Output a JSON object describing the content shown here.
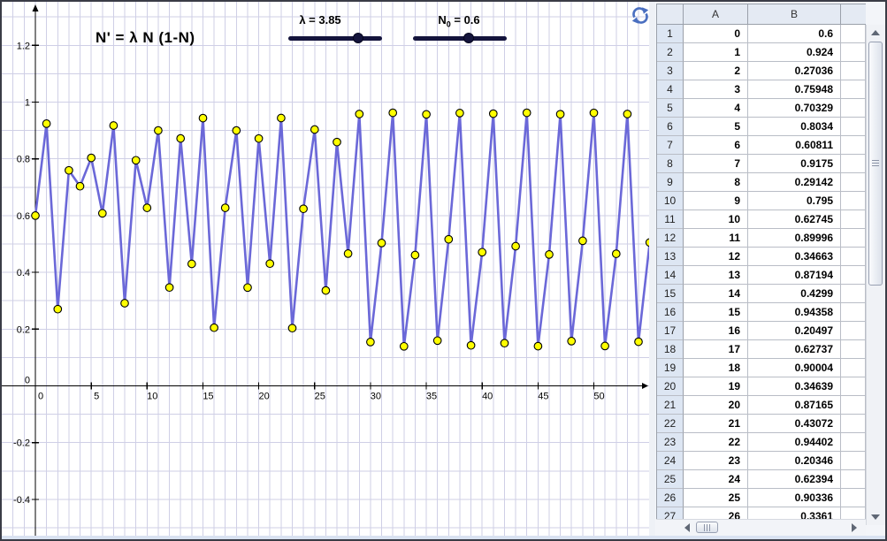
{
  "graph": {
    "formula": "N' = λ N (1-N)"
  },
  "sliders": {
    "lambda": {
      "label": "λ = 3.85",
      "value": 3.85
    },
    "n0": {
      "base": "N",
      "sub": "0",
      "rest": " = 0.6",
      "value": 0.6
    }
  },
  "icons": {
    "refresh": "reset-construction-icon"
  },
  "colors": {
    "curve": "#6b68d8",
    "point_fill": "#ffff00",
    "point_stroke": "#000000",
    "grid": "#cfcfe6",
    "axis": "#000000",
    "slider": "#14143c",
    "refresh_icon": "#4a6fc0",
    "sheet_header_bg": "#e4eaf3",
    "sheet_rowheader_bg": "#dde6f3"
  },
  "chart_data": {
    "type": "line",
    "title": "N' = λ N (1-N)",
    "legend": [],
    "grid": true,
    "grid_x_step": 1,
    "grid_y_step": 0.1,
    "xlim": [
      -3,
      55
    ],
    "ylim": [
      -0.53,
      1.35
    ],
    "x_tick_labels": [
      "0",
      "5",
      "10",
      "15",
      "20",
      "25",
      "30",
      "35",
      "40",
      "45",
      "50"
    ],
    "y_tick_labels": [
      "-0.4",
      "-0.2",
      "0",
      "0.2",
      "0.4",
      "0.6",
      "0.8",
      "1",
      "1.2"
    ],
    "x_start": 0,
    "x_step": 1,
    "values": [
      0.6,
      0.924,
      0.27036,
      0.75948,
      0.70329,
      0.8034,
      0.60811,
      0.9175,
      0.29142,
      0.795,
      0.62745,
      0.89996,
      0.34663,
      0.87194,
      0.4299,
      0.94358,
      0.20497,
      0.62737,
      0.90004,
      0.34639,
      0.87165,
      0.43072,
      0.94402,
      0.20346,
      0.62394,
      0.90336,
      0.3361,
      0.85908,
      0.46609,
      0.95807,
      0.15466,
      0.50335,
      0.96246,
      0.1391,
      0.46104,
      0.95666,
      0.15963,
      0.51647,
      0.96146,
      0.14266,
      0.47089,
      0.95924,
      0.15053,
      0.49231,
      0.96227,
      0.13978,
      0.46293,
      0.95724,
      0.15759,
      0.51111,
      0.96203,
      0.14063,
      0.46529,
      0.95787,
      0.15537,
      0.50523
    ]
  },
  "spreadsheet": {
    "columns": [
      "A",
      "B"
    ],
    "rows": [
      {
        "n": "1",
        "a": "0",
        "b": "0.6"
      },
      {
        "n": "2",
        "a": "1",
        "b": "0.924"
      },
      {
        "n": "3",
        "a": "2",
        "b": "0.27036"
      },
      {
        "n": "4",
        "a": "3",
        "b": "0.75948"
      },
      {
        "n": "5",
        "a": "4",
        "b": "0.70329"
      },
      {
        "n": "6",
        "a": "5",
        "b": "0.8034"
      },
      {
        "n": "7",
        "a": "6",
        "b": "0.60811"
      },
      {
        "n": "8",
        "a": "7",
        "b": "0.9175"
      },
      {
        "n": "9",
        "a": "8",
        "b": "0.29142"
      },
      {
        "n": "10",
        "a": "9",
        "b": "0.795"
      },
      {
        "n": "11",
        "a": "10",
        "b": "0.62745"
      },
      {
        "n": "12",
        "a": "11",
        "b": "0.89996"
      },
      {
        "n": "13",
        "a": "12",
        "b": "0.34663"
      },
      {
        "n": "14",
        "a": "13",
        "b": "0.87194"
      },
      {
        "n": "15",
        "a": "14",
        "b": "0.4299"
      },
      {
        "n": "16",
        "a": "15",
        "b": "0.94358"
      },
      {
        "n": "17",
        "a": "16",
        "b": "0.20497"
      },
      {
        "n": "18",
        "a": "17",
        "b": "0.62737"
      },
      {
        "n": "19",
        "a": "18",
        "b": "0.90004"
      },
      {
        "n": "20",
        "a": "19",
        "b": "0.34639"
      },
      {
        "n": "21",
        "a": "20",
        "b": "0.87165"
      },
      {
        "n": "22",
        "a": "21",
        "b": "0.43072"
      },
      {
        "n": "23",
        "a": "22",
        "b": "0.94402"
      },
      {
        "n": "24",
        "a": "23",
        "b": "0.20346"
      },
      {
        "n": "25",
        "a": "24",
        "b": "0.62394"
      },
      {
        "n": "26",
        "a": "25",
        "b": "0.90336"
      },
      {
        "n": "27",
        "a": "26",
        "b": "0.3361"
      }
    ]
  }
}
